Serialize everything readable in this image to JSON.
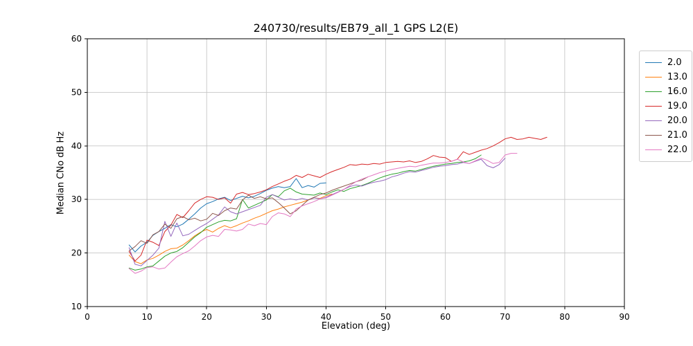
{
  "page": {
    "background": "#ffffff",
    "axis_color": "#000000",
    "grid_color": "#c6c6c6"
  },
  "chart_data": {
    "type": "line",
    "title": "240730/results/EB79_all_1 GPS L2(E)",
    "xlabel": "Elevation (deg)",
    "ylabel": "Median CNo dB Hz",
    "xlim": [
      0,
      90
    ],
    "ylim": [
      10,
      60
    ],
    "xticks": [
      0,
      10,
      20,
      30,
      40,
      50,
      60,
      70,
      80,
      90
    ],
    "yticks": [
      10,
      20,
      30,
      40,
      50,
      60
    ],
    "grid": true,
    "legend_position": "outside-right",
    "series": [
      {
        "name": "2.0",
        "color": "#1f77b4",
        "x_start": 7,
        "x_step": 1,
        "values": [
          21.5,
          20.2,
          21.3,
          22.0,
          23.3,
          24.0,
          24.6,
          25.3,
          24.9,
          25.4,
          26.3,
          27.3,
          28.4,
          29.2,
          29.6,
          30.1,
          30.4,
          29.8,
          30.2,
          30.6,
          30.3,
          30.6,
          31.1,
          31.7,
          32.1,
          32.4,
          32.2,
          32.4,
          33.9,
          32.2,
          32.6,
          32.3,
          33.0,
          33.1
        ]
      },
      {
        "name": "13.0",
        "color": "#ff7f0e",
        "x_start": 7,
        "x_step": 1,
        "values": [
          19.6,
          18.4,
          18.0,
          18.7,
          19.0,
          19.6,
          20.3,
          20.8,
          20.9,
          21.5,
          22.3,
          23.2,
          23.9,
          24.4,
          23.9,
          24.6,
          25.1,
          24.7,
          25.1,
          25.6,
          26.0,
          26.5,
          26.9,
          27.4,
          27.9,
          28.2,
          28.6,
          28.9,
          29.2,
          29.5,
          29.9,
          30.3,
          30.2,
          30.7,
          31.0
        ]
      },
      {
        "name": "16.0",
        "color": "#2ca02c",
        "x_start": 7,
        "x_step": 1,
        "values": [
          17.2,
          16.8,
          17.0,
          17.4,
          17.6,
          18.5,
          19.4,
          20.0,
          20.3,
          21.0,
          22.0,
          23.0,
          23.8,
          24.8,
          25.3,
          25.8,
          26.1,
          26.0,
          26.4,
          30.0,
          28.4,
          28.9,
          29.4,
          29.9,
          30.9,
          30.5,
          31.6,
          32.1,
          31.4,
          31.0,
          30.9,
          30.8,
          31.2,
          30.9,
          31.4,
          31.8,
          31.5,
          32.0,
          32.3,
          32.6,
          33.0,
          33.5,
          34.0,
          34.4,
          34.7,
          34.9,
          35.2,
          35.4,
          35.3,
          35.6,
          35.9,
          36.2,
          36.4,
          36.6,
          36.7,
          36.9,
          37.0,
          37.2,
          37.6,
          38.3
        ]
      },
      {
        "name": "19.0",
        "color": "#d62728",
        "x_start": 7,
        "x_step": 1,
        "values": [
          20.3,
          18.5,
          19.6,
          22.4,
          22.0,
          21.4,
          24.0,
          25.2,
          27.2,
          26.6,
          27.9,
          29.3,
          30.0,
          30.5,
          30.4,
          30.0,
          30.3,
          29.3,
          31.0,
          31.3,
          30.9,
          31.1,
          31.4,
          31.8,
          32.4,
          32.9,
          33.4,
          33.8,
          34.5,
          34.1,
          34.7,
          34.4,
          34.1,
          34.7,
          35.2,
          35.6,
          36.0,
          36.5,
          36.4,
          36.6,
          36.5,
          36.7,
          36.6,
          36.9,
          37.0,
          37.1,
          37.0,
          37.2,
          36.9,
          37.1,
          37.6,
          38.2,
          37.9,
          37.8,
          37.1,
          37.5,
          38.9,
          38.4,
          38.8,
          39.2,
          39.5,
          40.0,
          40.6,
          41.3,
          41.6,
          41.2,
          41.3,
          41.6,
          41.4,
          41.2,
          41.6
        ]
      },
      {
        "name": "20.0",
        "color": "#9467bd",
        "x_start": 7,
        "x_step": 1,
        "values": [
          21.0,
          17.9,
          17.6,
          18.6,
          19.6,
          20.9,
          25.9,
          23.1,
          25.6,
          23.2,
          23.5,
          24.2,
          24.9,
          25.5,
          26.3,
          27.1,
          28.6,
          27.7,
          27.3,
          27.7,
          28.1,
          28.5,
          28.9,
          30.4,
          30.9,
          30.4,
          29.9,
          30.1,
          29.9,
          30.2,
          29.9,
          30.3,
          30.1,
          30.4,
          30.9,
          31.4,
          31.9,
          32.4,
          32.7,
          32.5,
          32.9,
          33.2,
          33.4,
          33.7,
          34.2,
          34.5,
          34.9,
          35.2,
          35.1,
          35.4,
          35.7,
          36.0,
          36.2,
          36.3,
          36.5,
          36.6,
          36.9,
          36.7,
          37.1,
          37.5,
          36.3,
          35.9,
          36.5,
          37.7
        ]
      },
      {
        "name": "21.0",
        "color": "#8c564b",
        "x_start": 7,
        "x_step": 1,
        "values": [
          20.4,
          21.2,
          22.3,
          21.8,
          23.4,
          24.0,
          25.4,
          24.6,
          26.4,
          26.8,
          26.2,
          26.5,
          26.0,
          26.3,
          27.4,
          27.0,
          27.9,
          28.4,
          28.2,
          29.9,
          30.8,
          30.2,
          30.5,
          30.1,
          30.3,
          29.4,
          28.4,
          27.3,
          27.9,
          28.9,
          29.9,
          30.4,
          30.9,
          31.2,
          31.7,
          32.1,
          32.5,
          32.9,
          33.3,
          33.6,
          34.2
        ]
      },
      {
        "name": "22.0",
        "color": "#e377c2",
        "x_start": 7,
        "x_step": 1,
        "values": [
          17.1,
          16.2,
          16.6,
          17.3,
          17.4,
          17.0,
          17.2,
          18.3,
          19.3,
          19.9,
          20.4,
          21.3,
          22.3,
          23.0,
          23.3,
          23.1,
          24.4,
          24.3,
          24.1,
          24.4,
          25.4,
          25.1,
          25.5,
          25.3,
          26.8,
          27.5,
          27.3,
          26.8,
          28.2,
          28.8,
          29.2,
          29.6,
          30.1,
          30.3,
          30.8,
          31.3,
          31.9,
          32.6,
          33.3,
          33.8,
          34.2,
          34.6,
          35.0,
          35.3,
          35.6,
          35.8,
          36.0,
          36.2,
          36.1,
          36.4,
          36.6,
          36.8,
          36.8,
          36.9,
          37.1,
          37.5,
          37.0,
          36.7,
          37.2,
          37.7,
          37.3,
          36.7,
          36.9,
          38.3,
          38.6,
          38.6
        ]
      }
    ]
  }
}
